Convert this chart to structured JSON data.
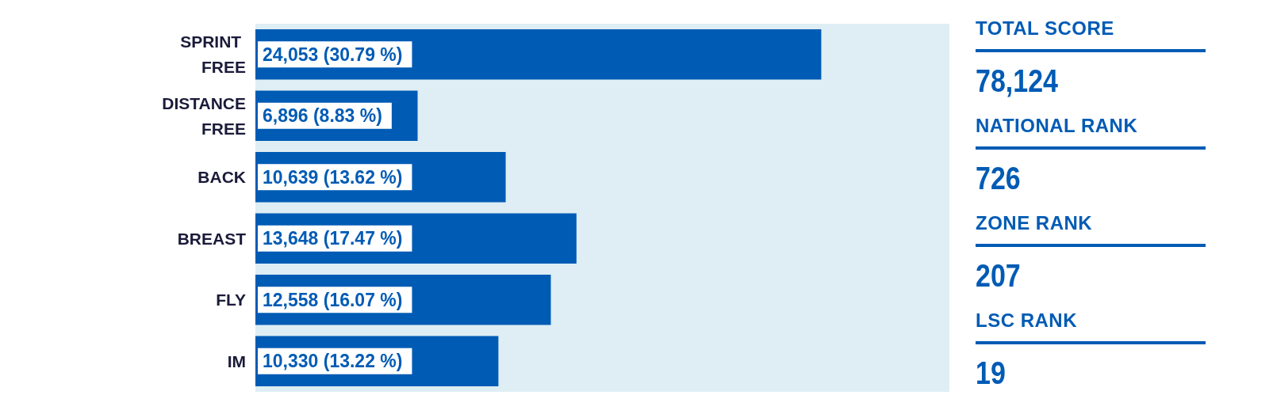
{
  "chart_data": [
    {
      "type": "bar",
      "orientation": "horizontal",
      "categories": [
        "SPRINT FREE",
        "DISTANCE FREE",
        "BACK",
        "BREAST",
        "FLY",
        "IM"
      ],
      "values": [
        24053,
        6896,
        10639,
        13648,
        12558,
        10330
      ],
      "value_labels": [
        "24,053 (30.79 %)",
        "6,896 (8.83 %)",
        "10,639 (13.62 %)",
        "13,648 (17.47 %)",
        "12,558 (16.07 %)",
        "10,330 (13.22 %)"
      ],
      "color": "#005bb5",
      "xlim": [
        0,
        29500
      ],
      "tick_labels": "y"
    },
    {
      "type": "other",
      "annotations": [
        "TOTAL SCORE",
        "78,124",
        "NATIONAL RANK",
        "726",
        "ZONE RANK",
        "207",
        "LSC RANK",
        "19"
      ]
    }
  ]
}
